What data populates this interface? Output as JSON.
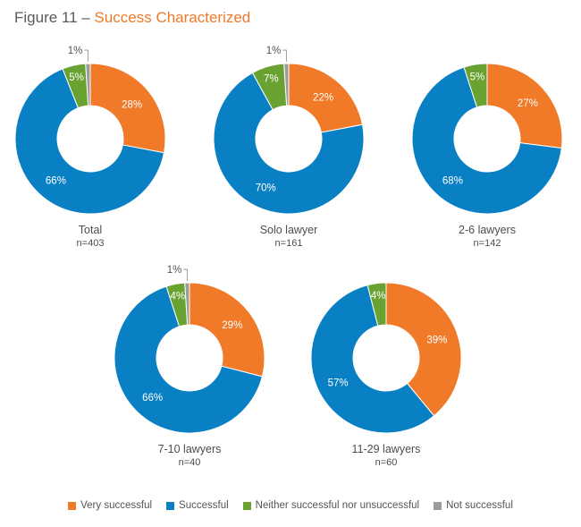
{
  "figure": {
    "prefix": "Figure 11 – ",
    "title": "Success Characterized"
  },
  "chart_data": {
    "type": "pie",
    "subtype": "donut",
    "title": "Figure 11 – Success Characterized",
    "series_names": [
      "Very successful",
      "Successful",
      "Neither successful nor unsuccessful",
      "Not successful"
    ],
    "colors": [
      "#f07a28",
      "#0a80c4",
      "#6aa232",
      "#9c9c9c"
    ],
    "charts": [
      {
        "label": "Total",
        "n": "n=403",
        "values": [
          28,
          66,
          5,
          1
        ],
        "labels": [
          "28%",
          "66%",
          "5%",
          "1%"
        ]
      },
      {
        "label": "Solo lawyer",
        "n": "n=161",
        "values": [
          22,
          70,
          7,
          1
        ],
        "labels": [
          "22%",
          "70%",
          "7%",
          "1%"
        ]
      },
      {
        "label": "2-6 lawyers",
        "n": "n=142",
        "values": [
          27,
          68,
          5,
          0
        ],
        "labels": [
          "27%",
          "68%",
          "5%",
          ""
        ]
      },
      {
        "label": "7-10 lawyers",
        "n": "n=40",
        "values": [
          29,
          66,
          4,
          1
        ],
        "labels": [
          "29%",
          "66%",
          "4%",
          "1%"
        ]
      },
      {
        "label": "11-29 lawyers",
        "n": "n=60",
        "values": [
          39,
          57,
          4,
          0
        ],
        "labels": [
          "39%",
          "57%",
          "4%",
          ""
        ]
      }
    ]
  },
  "legend": [
    {
      "label": "Very successful",
      "color": "#f07a28"
    },
    {
      "label": "Successful",
      "color": "#0a80c4"
    },
    {
      "label": "Neither successful nor unsuccessful",
      "color": "#6aa232"
    },
    {
      "label": "Not successful",
      "color": "#9c9c9c"
    }
  ]
}
